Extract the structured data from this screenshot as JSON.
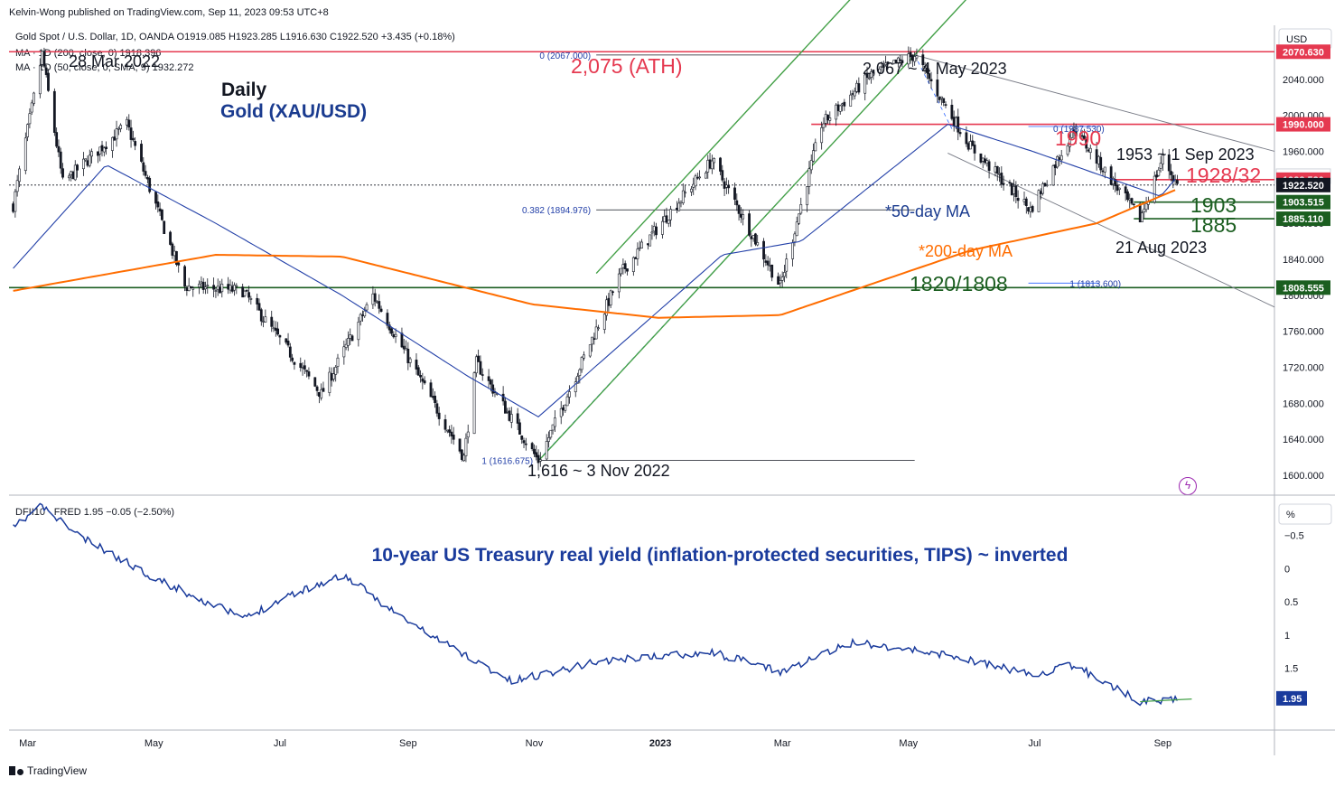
{
  "header": {
    "publisher": "Kelvin-Wong published on TradingView.com, Sep 11, 2023 09:53 UTC+8",
    "symbol_line": "Gold Spot / U.S. Dollar, 1D, OANDA  O1919.085  H1923.285  L1916.630  C1922.520  +3.435 (+0.18%)",
    "ma200_line": "MA · 1D (200, close, 0)  1918.396",
    "ma50_line": "MA · 1D (50, close, 0, SMA, 9)  1932.272",
    "lower_line": "DFII10 · FRED  1.95  −0.05 (−2.50%)",
    "currency": "USD",
    "lower_unit": "%",
    "footer": "TradingView"
  },
  "colors": {
    "up": "#131722",
    "down": "#131722",
    "ma50": "#2340a8",
    "ma200": "#ff6d00",
    "channel": "#43a047",
    "red": "#e53950",
    "green": "#1b5e20",
    "navy": "#1a3b8f",
    "tips": "#1a3b9c"
  },
  "chart_data": [
    {
      "type": "candlestick",
      "title": "Daily",
      "subtitle": "Gold (XAU/USD)",
      "ylim": [
        1580,
        2100
      ],
      "y_ticks": [
        "2040.000",
        "2000.000",
        "1960.000",
        "1920.000",
        "1880.000",
        "1840.000",
        "1800.000",
        "1760.000",
        "1720.000",
        "1680.000",
        "1640.000",
        "1600.000"
      ],
      "x_ticks": [
        "Mar",
        "May",
        "Jul",
        "Sep",
        "Nov",
        "2023",
        "Mar",
        "May",
        "Jul",
        "Sep"
      ],
      "price_keypoints": [
        [
          "2022-02-22",
          1900
        ],
        [
          "2022-03-08",
          2068
        ],
        [
          "2022-03-18",
          1925
        ],
        [
          "2022-04-18",
          1990
        ],
        [
          "2022-05-16",
          1810
        ],
        [
          "2022-06-13",
          1805
        ],
        [
          "2022-07-21",
          1690
        ],
        [
          "2022-08-15",
          1800
        ],
        [
          "2022-09-28",
          1620
        ],
        [
          "2022-10-04",
          1725
        ],
        [
          "2022-11-03",
          1616
        ],
        [
          "2022-12-13",
          1825
        ],
        [
          "2023-01-26",
          1950
        ],
        [
          "2023-02-28",
          1810
        ],
        [
          "2023-03-20",
          1990
        ],
        [
          "2023-04-13",
          2045
        ],
        [
          "2023-05-04",
          2067
        ],
        [
          "2023-05-31",
          1965
        ],
        [
          "2023-06-29",
          1895
        ],
        [
          "2023-07-20",
          1985
        ],
        [
          "2023-08-21",
          1885
        ],
        [
          "2023-09-01",
          1953
        ],
        [
          "2023-09-08",
          1922.52
        ]
      ],
      "ma50_keypoints": [
        [
          "2022-02-22",
          1830
        ],
        [
          "2022-04-08",
          1945
        ],
        [
          "2022-05-31",
          1880
        ],
        [
          "2022-07-31",
          1800
        ],
        [
          "2022-09-30",
          1710
        ],
        [
          "2022-11-03",
          1665
        ],
        [
          "2023-01-31",
          1845
        ],
        [
          "2023-03-10",
          1860
        ],
        [
          "2023-05-20",
          1990
        ],
        [
          "2023-06-30",
          1960
        ],
        [
          "2023-08-31",
          1910
        ],
        [
          "2023-09-08",
          1932
        ]
      ],
      "ma200_keypoints": [
        [
          "2022-02-22",
          1805
        ],
        [
          "2022-05-31",
          1845
        ],
        [
          "2022-07-31",
          1843
        ],
        [
          "2022-10-31",
          1790
        ],
        [
          "2022-12-31",
          1775
        ],
        [
          "2023-02-28",
          1778
        ],
        [
          "2023-05-31",
          1850
        ],
        [
          "2023-07-31",
          1880
        ],
        [
          "2023-09-08",
          1918
        ]
      ],
      "horizontal_levels": [
        {
          "label": "2070.630",
          "value": 2070.63,
          "style": "red"
        },
        {
          "label": "1990.000",
          "value": 1990,
          "style": "red"
        },
        {
          "label": "1932.395",
          "value": 1932.395,
          "style": "navy"
        },
        {
          "label": "1928.520",
          "value": 1928.52,
          "style": "red"
        },
        {
          "label": "1922.520",
          "value": 1922.52,
          "style": "black"
        },
        {
          "label": "1903.515",
          "value": 1903.515,
          "style": "green"
        },
        {
          "label": "1885.110",
          "value": 1885.11,
          "style": "green"
        },
        {
          "label": "1808.555",
          "value": 1808.555,
          "style": "green"
        }
      ],
      "annotations": {
        "ath": "2,075 (ATH)",
        "peak_2023": "2,067 ~ 4 May 2023",
        "peak_2022": "28 Mar 2022",
        "low_2022": "1,616 ~ 3 Nov 2022",
        "r1990": "1990",
        "sep1": "1953 ~ 1 Sep 2023",
        "r1928": "1928/32",
        "s1903": "1903",
        "s1885": "1885",
        "aug21": "21 Aug 2023",
        "s1820": "1820/1808",
        "ma50_label": "*50-day MA",
        "ma200_label": "*200-day MA",
        "fib0": "0 (2067.000)",
        "fib382": "0.382 (1894.976)",
        "fib1": "1 (1616.675)",
        "fib_b0": "0 (1987.530)",
        "fib_b1": "1 (1813.600)"
      }
    },
    {
      "type": "line",
      "title": "10-year US Treasury real yield (inflation-protected securities, TIPS) ~ inverted",
      "series_name": "DFII10",
      "inverted": true,
      "ylim": [
        -1.05,
        2.4
      ],
      "y_ticks": [
        "−0.5",
        "0",
        "0.5",
        "1",
        "1.5"
      ],
      "last_value": "1.95",
      "keypoints": [
        [
          "2022-02-22",
          -0.6
        ],
        [
          "2022-03-07",
          -0.95
        ],
        [
          "2022-03-28",
          -0.45
        ],
        [
          "2022-05-05",
          0.2
        ],
        [
          "2022-06-14",
          0.75
        ],
        [
          "2022-07-05",
          0.4
        ],
        [
          "2022-08-01",
          0.1
        ],
        [
          "2022-09-01",
          0.8
        ],
        [
          "2022-10-21",
          1.7
        ],
        [
          "2022-11-10",
          1.55
        ],
        [
          "2022-12-01",
          1.4
        ],
        [
          "2023-01-25",
          1.25
        ],
        [
          "2023-02-28",
          1.55
        ],
        [
          "2023-04-05",
          1.1
        ],
        [
          "2023-05-20",
          1.3
        ],
        [
          "2023-06-30",
          1.6
        ],
        [
          "2023-07-20",
          1.45
        ],
        [
          "2023-08-21",
          2.0
        ],
        [
          "2023-09-08",
          1.95
        ]
      ]
    }
  ]
}
